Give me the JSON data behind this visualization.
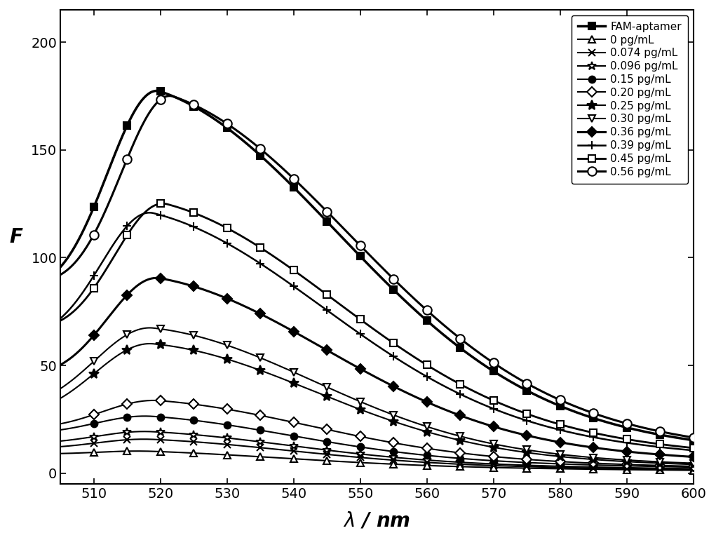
{
  "xlabel": "$\\lambda$ / nm",
  "ylabel": "F",
  "xlim": [
    505,
    600
  ],
  "ylim": [
    -5,
    215
  ],
  "xticks": [
    510,
    520,
    530,
    540,
    550,
    560,
    570,
    580,
    590,
    600
  ],
  "yticks": [
    0,
    50,
    100,
    150,
    200
  ],
  "background_color": "#ffffff",
  "series": [
    {
      "label": "FAM-aptamer",
      "peak": 195,
      "peak_wl": 520,
      "sigma_l": 8,
      "sigma_r": 28,
      "base": 75,
      "marker": "s",
      "marker_every": 5,
      "lw": 2.5,
      "ms": 7,
      "color": "#000000",
      "markerfacecolor": "#000000"
    },
    {
      "label": "0 pg/mL",
      "peak": 12,
      "peak_wl": 519,
      "sigma_l": 9,
      "sigma_r": 22,
      "base": 8,
      "marker": "^",
      "marker_every": 5,
      "lw": 1.5,
      "ms": 7,
      "color": "#000000",
      "markerfacecolor": "white"
    },
    {
      "label": "0.074 pg/mL",
      "peak": 18,
      "peak_wl": 519,
      "sigma_l": 9,
      "sigma_r": 22,
      "base": 10,
      "marker": "x",
      "marker_every": 5,
      "lw": 1.5,
      "ms": 7,
      "color": "#000000",
      "markerfacecolor": "#000000"
    },
    {
      "label": "0.096 pg/mL",
      "peak": 22,
      "peak_wl": 519,
      "sigma_l": 9,
      "sigma_r": 22,
      "base": 12,
      "marker": "*",
      "marker_every": 5,
      "lw": 1.5,
      "ms": 9,
      "color": "#000000",
      "markerfacecolor": "white"
    },
    {
      "label": "0.15 pg/mL",
      "peak": 30,
      "peak_wl": 519,
      "sigma_l": 9,
      "sigma_r": 22,
      "base": 16,
      "marker": "o",
      "marker_every": 5,
      "lw": 1.5,
      "ms": 7,
      "color": "#000000",
      "markerfacecolor": "#000000"
    },
    {
      "label": "0.20 pg/mL",
      "peak": 38,
      "peak_wl": 520,
      "sigma_l": 9,
      "sigma_r": 24,
      "base": 18,
      "marker": "D",
      "marker_every": 5,
      "lw": 1.5,
      "ms": 7,
      "color": "#000000",
      "markerfacecolor": "white"
    },
    {
      "label": "0.25 pg/mL",
      "peak": 65,
      "peak_wl": 519,
      "sigma_l": 9,
      "sigma_r": 25,
      "base": 22,
      "marker": "*",
      "marker_every": 5,
      "lw": 1.5,
      "ms": 10,
      "color": "#000000",
      "markerfacecolor": "#000000"
    },
    {
      "label": "0.30 pg/mL",
      "peak": 73,
      "peak_wl": 519,
      "sigma_l": 9,
      "sigma_r": 25,
      "base": 25,
      "marker": "v",
      "marker_every": 5,
      "lw": 1.5,
      "ms": 7,
      "color": "#000000",
      "markerfacecolor": "white"
    },
    {
      "label": "0.36 pg/mL",
      "peak": 100,
      "peak_wl": 520,
      "sigma_l": 8,
      "sigma_r": 26,
      "base": 40,
      "marker": "D",
      "marker_every": 5,
      "lw": 2.2,
      "ms": 7,
      "color": "#000000",
      "markerfacecolor": "#000000"
    },
    {
      "label": "0.39 pg/mL",
      "peak": 133,
      "peak_wl": 519,
      "sigma_l": 8,
      "sigma_r": 27,
      "base": 55,
      "marker": "+",
      "marker_every": 5,
      "lw": 1.8,
      "ms": 9,
      "color": "#000000",
      "markerfacecolor": "#000000"
    },
    {
      "label": "0.45 pg/mL",
      "peak": 140,
      "peak_wl": 521,
      "sigma_l": 8,
      "sigma_r": 27,
      "base": 60,
      "marker": "s",
      "marker_every": 5,
      "lw": 2.0,
      "ms": 7,
      "color": "#000000",
      "markerfacecolor": "white"
    },
    {
      "label": "0.56 pg/mL",
      "peak": 196,
      "peak_wl": 522,
      "sigma_l": 8,
      "sigma_r": 28,
      "base": 80,
      "marker": "o",
      "marker_every": 5,
      "lw": 2.2,
      "ms": 9,
      "color": "#000000",
      "markerfacecolor": "white"
    }
  ]
}
